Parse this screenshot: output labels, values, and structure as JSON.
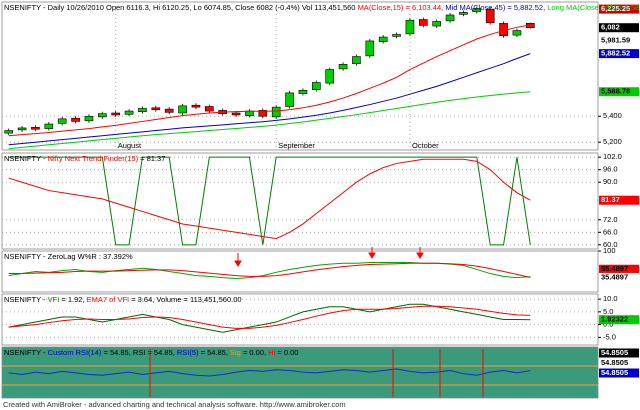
{
  "chart_data": [
    {
      "type": "candlestick",
      "title_parts": [
        {
          "text": "NSENIFTY - Daily 10/26/2010 Open 6116.3, Hi 6120.25, Lo 6074.85, Close 6082 (-0.4%) Vol 113,451,560 ",
          "color": "#000000"
        },
        {
          "text": "MA(Close,15) = 6,103.44, ",
          "color": "#ff0000"
        },
        {
          "text": "Mid MA(Close,45) = 5,882.52, ",
          "color": "#0000cc"
        },
        {
          "text": "Long MA(Close,100) = 5,588.78",
          "color": "#00cc00"
        }
      ],
      "categories": [
        null,
        null,
        null,
        null,
        null,
        null,
        null,
        null,
        "August",
        null,
        null,
        null,
        null,
        null,
        null,
        null,
        null,
        null,
        null,
        null,
        "September",
        null,
        null,
        null,
        null,
        null,
        null,
        null,
        null,
        null,
        "October",
        null,
        null,
        null,
        null,
        null,
        null,
        null,
        null,
        null
      ],
      "open": [
        5270,
        5295,
        5315,
        5305,
        5345,
        5385,
        5365,
        5395,
        5425,
        5415,
        5435,
        5465,
        5455,
        5425,
        5485,
        5475,
        5445,
        5425,
        5405,
        5445,
        5395,
        5475,
        5575,
        5605,
        5655,
        5765,
        5805,
        5865,
        5975,
        6015,
        6035,
        6145,
        6095,
        6135,
        6185,
        6205,
        6225,
        6115,
        6025,
        6116.3
      ],
      "high": [
        5305,
        5325,
        5330,
        5355,
        5395,
        5400,
        5415,
        5435,
        5440,
        5455,
        5475,
        5480,
        5470,
        5495,
        5500,
        5490,
        5460,
        5440,
        5455,
        5460,
        5485,
        5595,
        5615,
        5675,
        5775,
        5815,
        5875,
        5995,
        6025,
        6045,
        6155,
        6160,
        6145,
        6195,
        6215,
        6245,
        6240,
        6130,
        6075,
        6120.25
      ],
      "low": [
        5255,
        5280,
        5285,
        5290,
        5330,
        5345,
        5350,
        5380,
        5395,
        5400,
        5420,
        5435,
        5415,
        5410,
        5455,
        5425,
        5405,
        5395,
        5390,
        5385,
        5380,
        5460,
        5560,
        5590,
        5640,
        5750,
        5790,
        5850,
        5960,
        6000,
        6020,
        6085,
        6080,
        6120,
        6170,
        6190,
        6105,
        6005,
        6010,
        6074.85
      ],
      "close": [
        5290,
        5310,
        5300,
        5340,
        5380,
        5360,
        5400,
        5420,
        5410,
        5440,
        5460,
        5450,
        5430,
        5480,
        5470,
        5440,
        5420,
        5410,
        5440,
        5400,
        5470,
        5580,
        5600,
        5660,
        5760,
        5800,
        5860,
        5980,
        6010,
        6030,
        6140,
        6100,
        6130,
        6180,
        6200,
        6230,
        6120,
        6020,
        6060,
        6082
      ],
      "up_color": "#00cc00",
      "down_color": "#ff0000",
      "series": [
        {
          "name": "MA(Close,15)",
          "color": "#ff0000",
          "values": [
            5250,
            5258,
            5266,
            5275,
            5285,
            5295,
            5305,
            5318,
            5330,
            5345,
            5360,
            5375,
            5390,
            5405,
            5415,
            5425,
            5432,
            5436,
            5438,
            5438,
            5440,
            5450,
            5465,
            5485,
            5510,
            5540,
            5575,
            5615,
            5655,
            5700,
            5760,
            5810,
            5860,
            5905,
            5950,
            5995,
            6030,
            6060,
            6085,
            6103.44
          ]
        },
        {
          "name": "Mid MA(Close,45)",
          "color": "#0000cc",
          "values": [
            5180,
            5190,
            5200,
            5210,
            5220,
            5230,
            5240,
            5250,
            5260,
            5270,
            5280,
            5290,
            5300,
            5310,
            5318,
            5326,
            5334,
            5342,
            5350,
            5358,
            5368,
            5380,
            5393,
            5408,
            5425,
            5445,
            5467,
            5490,
            5515,
            5540,
            5570,
            5600,
            5630,
            5665,
            5700,
            5735,
            5770,
            5805,
            5845,
            5882.52
          ]
        },
        {
          "name": "Long MA(Close,100)",
          "color": "#00cc00",
          "values": [
            5150,
            5160,
            5170,
            5180,
            5190,
            5200,
            5210,
            5220,
            5230,
            5240,
            5250,
            5258,
            5266,
            5274,
            5282,
            5290,
            5298,
            5306,
            5314,
            5322,
            5332,
            5344,
            5356,
            5370,
            5384,
            5398,
            5412,
            5428,
            5444,
            5460,
            5476,
            5492,
            5508,
            5522,
            5536,
            5548,
            5560,
            5570,
            5580,
            5588.78
          ]
        }
      ],
      "ylim": [
        5140,
        6280
      ],
      "yticks": [
        {
          "value": 5200,
          "label": "5,200"
        },
        {
          "value": 5400,
          "label": "5,400"
        }
      ],
      "markers": [
        {
          "value": 6225.25,
          "label": "6,225.25",
          "bg": "#cc0000",
          "fg": "#ffffff"
        },
        {
          "value": 6082,
          "label": "6,082",
          "bg": "#000000",
          "fg": "#ffffff"
        },
        {
          "value": 5981.59,
          "label": "5,981.59",
          "bg": "#ffffff",
          "fg": "#000000"
        },
        {
          "value": 5882.52,
          "label": "5,882.52",
          "bg": "#0000cc",
          "fg": "#ffffff"
        },
        {
          "value": 5588.78,
          "label": "5,588.78",
          "bg": "#00cc00",
          "fg": "#000000"
        }
      ],
      "grid": true
    },
    {
      "type": "line",
      "title_parts": [
        {
          "text": "NSENIFTY - ",
          "color": "#000000"
        },
        {
          "text": "Nifty Next Trend Finder(15)",
          "color": "#ff0000"
        },
        {
          "text": " = 81.37",
          "color": "#000000"
        }
      ],
      "series": [
        {
          "name": "Trend",
          "color": "#008000",
          "values": [
            102,
            102,
            102,
            102,
            102,
            102,
            102,
            102,
            60,
            60,
            102,
            102,
            102,
            60,
            60,
            102,
            102,
            102,
            102,
            60,
            102,
            102,
            102,
            102,
            102,
            102,
            102,
            102,
            102,
            102,
            102,
            102,
            102,
            102,
            102,
            102,
            60,
            60,
            102,
            60
          ]
        },
        {
          "name": "Nifty Next Trend Finder(15)",
          "color": "#ff0000",
          "values": [
            92,
            90,
            88,
            86,
            85,
            84,
            83,
            82,
            80,
            78,
            76,
            74,
            72,
            70,
            69,
            68,
            67,
            66,
            65,
            64,
            63,
            66,
            70,
            75,
            80,
            85,
            90,
            94,
            97,
            99,
            100,
            101,
            101,
            101,
            101,
            100,
            96,
            90,
            85,
            81.37
          ]
        }
      ],
      "ylim": [
        58,
        104
      ],
      "yticks": [
        {
          "value": 60,
          "label": "60.0"
        },
        {
          "value": 66,
          "label": "66.0"
        },
        {
          "value": 72,
          "label": "72.0"
        },
        {
          "value": 90,
          "label": "90.0"
        },
        {
          "value": 96,
          "label": "96.0"
        },
        {
          "value": 102,
          "label": "102.0"
        }
      ],
      "markers": [
        {
          "value": 81.37,
          "label": "81.37",
          "bg": "#ff0000",
          "fg": "#ffffff"
        }
      ],
      "grid": true
    },
    {
      "type": "line",
      "title_parts": [
        {
          "text": "NSENIFTY - ZeroLag W%R : 37.392%",
          "color": "#000000"
        }
      ],
      "series": [
        {
          "name": "W%R",
          "color": "#00aa00",
          "values": [
            40,
            45,
            50,
            48,
            52,
            55,
            50,
            48,
            52,
            55,
            58,
            55,
            50,
            45,
            40,
            38,
            35,
            33,
            35,
            40,
            48,
            55,
            60,
            65,
            68,
            70,
            70,
            72,
            72,
            72,
            72,
            70,
            70,
            68,
            65,
            55,
            45,
            38,
            35,
            37.392
          ]
        },
        {
          "name": "Signal",
          "color": "#ff0000",
          "values": [
            45,
            45,
            46,
            47,
            48,
            50,
            51,
            51,
            51,
            52,
            53,
            54,
            54,
            52,
            49,
            46,
            43,
            40,
            38,
            38,
            40,
            44,
            49,
            54,
            58,
            62,
            65,
            67,
            68,
            69,
            70,
            70,
            70,
            69,
            67,
            63,
            57,
            50,
            43,
            35.4897
          ]
        }
      ],
      "ylim": [
        0,
        100
      ],
      "yticks": [
        100
      ],
      "markers": [
        {
          "value": 55.4897,
          "label": "55.4897",
          "bg": "#ff0000",
          "fg": "#000000"
        },
        {
          "value": 35.4897,
          "label": "35.4897",
          "bg": "#ffffff",
          "fg": "#000000"
        }
      ],
      "grid": false
    },
    {
      "type": "line",
      "title_parts": [
        {
          "text": "NSENIFTY - ",
          "color": "#000000"
        },
        {
          "text": "VFI",
          "color": "#008000"
        },
        {
          "text": " = 1.92, ",
          "color": "#000000"
        },
        {
          "text": "EMA7 of VFI",
          "color": "#ff0000"
        },
        {
          "text": " = 3.64, Volume = 113,451,560.00",
          "color": "#000000"
        }
      ],
      "series": [
        {
          "name": "VFI",
          "color": "#006600",
          "values": [
            -1,
            0,
            1,
            2,
            3,
            3,
            2,
            1,
            2,
            3,
            4,
            3,
            2,
            0,
            -1,
            -2,
            -3,
            -2,
            -1,
            0,
            1,
            3,
            5,
            6,
            7,
            7,
            6,
            5,
            6,
            7,
            8,
            8,
            7,
            6,
            5,
            4,
            3,
            2,
            2,
            1.92
          ]
        },
        {
          "name": "EMA7 of VFI",
          "color": "#ff0000",
          "values": [
            -1,
            -0.5,
            0,
            0.8,
            1.5,
            2,
            2.2,
            2,
            2,
            2.2,
            2.8,
            3,
            2.8,
            2,
            1,
            0,
            -1,
            -1.5,
            -1.5,
            -1,
            -0.3,
            0.8,
            2,
            3.3,
            4.5,
            5.5,
            6,
            6,
            6,
            6.3,
            6.8,
            7.2,
            7.2,
            7,
            6.5,
            6,
            5.2,
            4.4,
            3.8,
            3.64
          ]
        }
      ],
      "ylim": [
        -8,
        12
      ],
      "yticks": [
        {
          "value": -5,
          "label": "-5.0"
        },
        {
          "value": 0,
          "label": "0.0"
        },
        {
          "value": 5,
          "label": "5.0"
        },
        {
          "value": 10,
          "label": "10.0"
        }
      ],
      "markers": [
        {
          "value": 1.92322,
          "label": "1.92322",
          "bg": "#00cc00",
          "fg": "#000000"
        }
      ],
      "grid": true
    },
    {
      "type": "line",
      "title_parts": [
        {
          "text": "NSENIFTY - ",
          "color": "#000000"
        },
        {
          "text": "Custom RSI(14)",
          "color": "#0000cc"
        },
        {
          "text": " = 54.85, RSI = 54.85, ",
          "color": "#000000"
        },
        {
          "text": "RSI(5)",
          "color": "#0000cc"
        },
        {
          "text": " = 54.85, ",
          "color": "#000000"
        },
        {
          "text": "Sig",
          "color": "#ff9900"
        },
        {
          "text": " = 0.00, ",
          "color": "#000000"
        },
        {
          "text": "Hi",
          "color": "#ff0000"
        },
        {
          "text": " = 0.00",
          "color": "#000000"
        }
      ],
      "background": "#3a9a7c",
      "series": [
        {
          "name": "Custom RSI(14)",
          "color": "#1030c0",
          "values": [
            52,
            50,
            53,
            51,
            54,
            52,
            50,
            49,
            51,
            53,
            50,
            52,
            54,
            51,
            49,
            48,
            50,
            53,
            55,
            54,
            56,
            55,
            53,
            52,
            54,
            56,
            55,
            53,
            55,
            57,
            54,
            52,
            53,
            55,
            51,
            49,
            53,
            55,
            52,
            54.85
          ]
        }
      ],
      "ylim": [
        20,
        85
      ],
      "yticks": [],
      "markers": [
        {
          "value": 54.8505,
          "label": "54.8505",
          "bg": "#000000",
          "fg": "#ffffff"
        },
        {
          "value": 54.8505,
          "label": "54.8505",
          "bg": "#ffffff",
          "fg": "#000000"
        },
        {
          "value": 54.8505,
          "label": "54.8505",
          "bg": "#0000cc",
          "fg": "#ffffff"
        }
      ],
      "markers_stacked": true,
      "grid": false
    }
  ],
  "footer": "Created with AmiBroker - advanced charting and technical analysis software. http://www.amibroker.com"
}
